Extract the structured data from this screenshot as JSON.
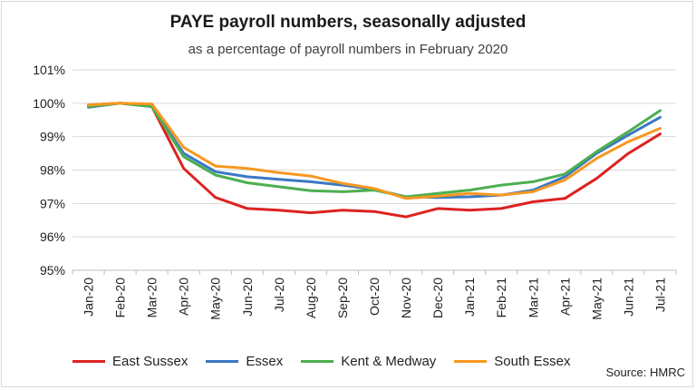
{
  "chart_data": {
    "type": "line",
    "title": "PAYE payroll numbers, seasonally adjusted",
    "subtitle": "as a percentage of payroll numbers in February 2020",
    "source": "Source: HMRC",
    "categories": [
      "Jan-20",
      "Feb-20",
      "Mar-20",
      "Apr-20",
      "May-20",
      "Jun-20",
      "Jul-20",
      "Aug-20",
      "Sep-20",
      "Oct-20",
      "Nov-20",
      "Dec-20",
      "Jan-21",
      "Feb-21",
      "Mar-21",
      "Apr-21",
      "May-21",
      "Jun-21",
      "Jul-21"
    ],
    "ylim": [
      95,
      101
    ],
    "yticks": [
      95,
      96,
      97,
      98,
      99,
      100,
      101
    ],
    "ytick_labels": [
      "95%",
      "96%",
      "97%",
      "98%",
      "99%",
      "100%",
      "101%"
    ],
    "grid": true,
    "legend_position": "bottom",
    "series": [
      {
        "name": "East Sussex",
        "color": "#dd2222",
        "values": [
          99.95,
          100.0,
          99.9,
          98.05,
          97.18,
          96.85,
          96.8,
          96.72,
          96.8,
          96.76,
          96.6,
          96.85,
          96.8,
          96.85,
          97.05,
          97.15,
          97.75,
          98.5,
          99.08
        ]
      },
      {
        "name": "Essex",
        "color": "#3b78c4",
        "values": [
          99.88,
          100.0,
          99.9,
          98.5,
          97.95,
          97.8,
          97.72,
          97.65,
          97.55,
          97.42,
          97.2,
          97.18,
          97.2,
          97.25,
          97.4,
          97.8,
          98.5,
          99.05,
          99.58
        ]
      },
      {
        "name": "Kent & Medway",
        "color": "#4caf50",
        "values": [
          99.9,
          100.0,
          99.9,
          98.4,
          97.85,
          97.62,
          97.5,
          97.38,
          97.35,
          97.4,
          97.2,
          97.3,
          97.4,
          97.55,
          97.65,
          97.88,
          98.55,
          99.15,
          99.78
        ]
      },
      {
        "name": "South Essex",
        "color": "#f79820",
        "values": [
          99.95,
          100.0,
          99.98,
          98.68,
          98.12,
          98.05,
          97.92,
          97.82,
          97.6,
          97.45,
          97.15,
          97.22,
          97.3,
          97.25,
          97.35,
          97.7,
          98.35,
          98.85,
          99.25
        ]
      }
    ]
  }
}
